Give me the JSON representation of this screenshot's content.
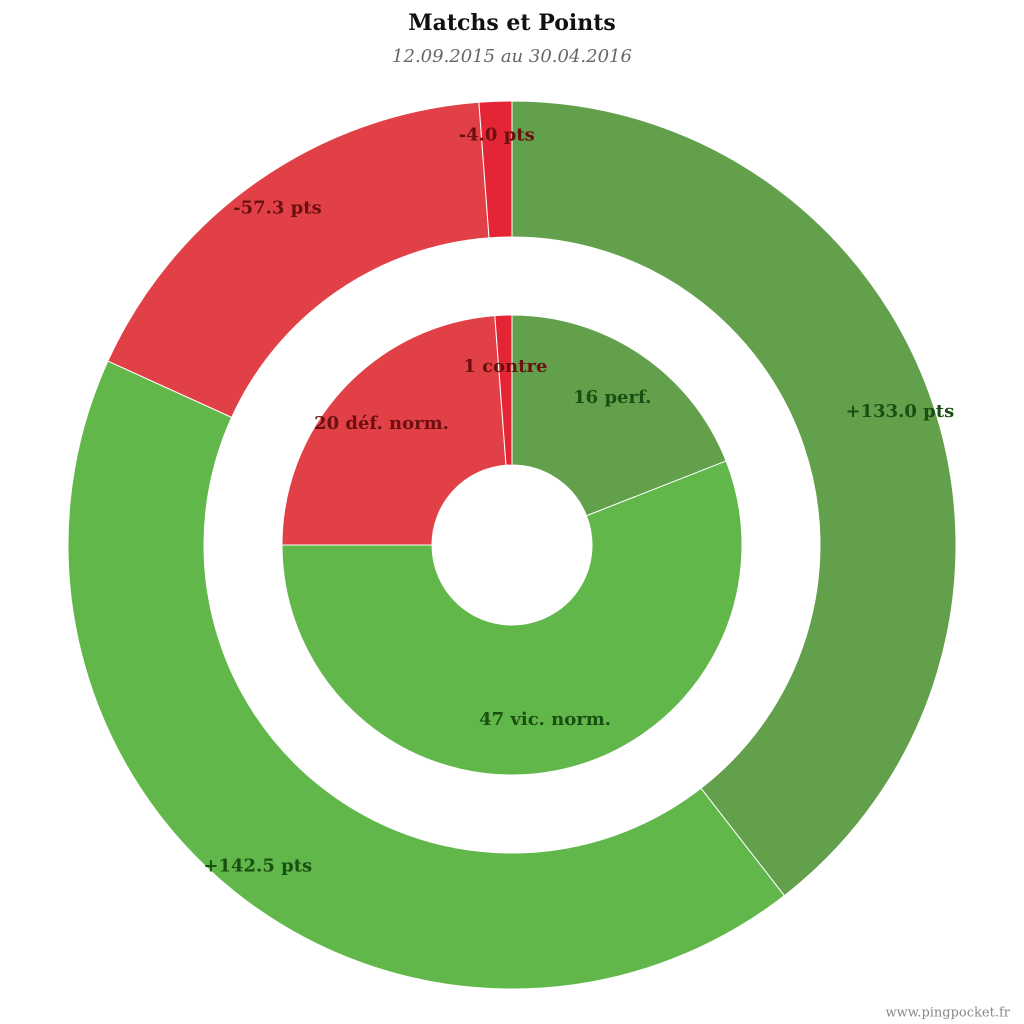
{
  "chart_data": [
    {
      "type": "pie",
      "title": "Matchs et Points",
      "subtitle": "12.09.2015 au 30.04.2016",
      "values": [
        16,
        47,
        20,
        1
      ],
      "value_labels": [
        "16 perf.",
        "47 vic. norm.",
        "20 déf. norm.",
        "1 contre"
      ],
      "colors": [
        "#62a04b",
        "#62b74b",
        "#e04046",
        "#e32536"
      ],
      "label_colors": [
        "#1a4f12",
        "#1a4f12",
        "#6b0f0f",
        "#6b0f0f"
      ]
    },
    {
      "type": "pie",
      "values": [
        133.0,
        142.5,
        -57.3,
        -4.0
      ],
      "value_labels": [
        "+133.0 pts",
        "+142.5 pts",
        "-57.3 pts",
        "-4.0 pts"
      ],
      "colors": [
        "#62a04b",
        "#62b74b",
        "#e04046",
        "#e32536"
      ],
      "label_colors": [
        "#1a4f12",
        "#1a4f12",
        "#6b0f0f",
        "#6b0f0f"
      ]
    }
  ],
  "footer": "www.pingpocket.fr"
}
